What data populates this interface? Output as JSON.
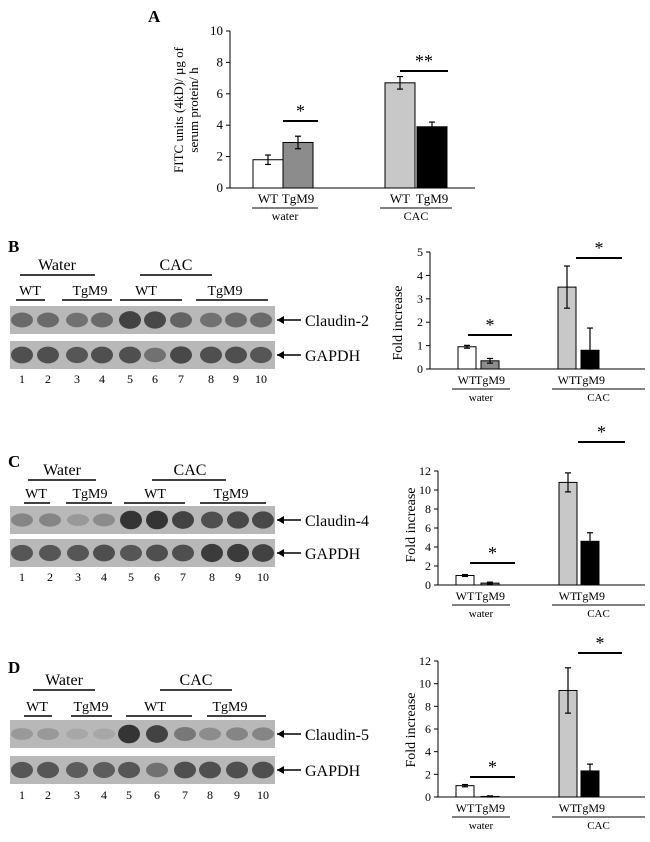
{
  "panel_a": {
    "letter": "A",
    "ylabel_line1": "FITC units (4kD)/ µg of",
    "ylabel_line2": "serum protein/ h",
    "yticks": [
      "0",
      "2",
      "4",
      "6",
      "8",
      "10"
    ],
    "ylim": [
      0,
      10
    ],
    "bars": [
      {
        "label": "WT",
        "value": 1.8,
        "err": 0.3,
        "color": "#ffffff"
      },
      {
        "label": "TgM9",
        "value": 2.9,
        "err": 0.4,
        "color": "#8c8c8c"
      },
      {
        "label": "WT",
        "value": 6.7,
        "err": 0.4,
        "color": "#c8c8c8"
      },
      {
        "label": "TgM9",
        "value": 3.9,
        "err": 0.3,
        "color": "#000000"
      }
    ],
    "groups": [
      "water",
      "CAC"
    ],
    "sig_water": "*",
    "sig_cac": "**"
  },
  "panel_b": {
    "letter": "B",
    "blot_groups": [
      "Water",
      "CAC"
    ],
    "blot_subgroups": [
      "WT",
      "TgM9",
      "WT",
      "TgM9"
    ],
    "lanes": [
      "1",
      "2",
      "3",
      "4",
      "5",
      "6",
      "7",
      "8",
      "9",
      "10"
    ],
    "band_top": "Claudin-2",
    "band_bottom": "GAPDH",
    "ylabel": "Fold increase",
    "yticks": [
      "0",
      "1",
      "2",
      "3",
      "4",
      "5"
    ],
    "ylim": [
      0,
      5
    ],
    "bars": [
      {
        "label": "WT",
        "value": 0.95,
        "err": 0.06,
        "color": "#ffffff"
      },
      {
        "label": "TgM9",
        "value": 0.35,
        "err": 0.1,
        "color": "#8c8c8c"
      },
      {
        "label": "WT",
        "value": 3.5,
        "err": 0.9,
        "color": "#c8c8c8"
      },
      {
        "label": "TgM9",
        "value": 0.8,
        "err": 0.95,
        "color": "#000000"
      }
    ],
    "groups": [
      "water",
      "CAC"
    ],
    "sig_water": "*",
    "sig_cac": "*"
  },
  "panel_c": {
    "letter": "C",
    "blot_groups": [
      "Water",
      "CAC"
    ],
    "blot_subgroups": [
      "WT",
      "TgM9",
      "WT",
      "TgM9"
    ],
    "lanes": [
      "1",
      "2",
      "3",
      "4",
      "5",
      "6",
      "7",
      "8",
      "9",
      "10"
    ],
    "band_top": "Claudin-4",
    "band_bottom": "GAPDH",
    "ylabel": "Fold increase",
    "yticks": [
      "0",
      "2",
      "4",
      "6",
      "8",
      "10",
      "12"
    ],
    "ylim": [
      0,
      12
    ],
    "bars": [
      {
        "label": "WT",
        "value": 1.0,
        "err": 0.1,
        "color": "#ffffff"
      },
      {
        "label": "TgM9",
        "value": 0.2,
        "err": 0.1,
        "color": "#8c8c8c"
      },
      {
        "label": "WT",
        "value": 10.8,
        "err": 1.0,
        "color": "#c8c8c8"
      },
      {
        "label": "TgM9",
        "value": 4.6,
        "err": 0.9,
        "color": "#000000"
      }
    ],
    "groups": [
      "water",
      "CAC"
    ],
    "sig_water": "*",
    "sig_cac": "*"
  },
  "panel_d": {
    "letter": "D",
    "blot_groups": [
      "Water",
      "CAC"
    ],
    "blot_subgroups": [
      "WT",
      "TgM9",
      "WT",
      "TgM9"
    ],
    "lanes": [
      "1",
      "2",
      "3",
      "4",
      "5",
      "6",
      "7",
      "8",
      "9",
      "10"
    ],
    "band_top": "Claudin-5",
    "band_bottom": "GAPDH",
    "ylabel": "Fold increase",
    "yticks": [
      "0",
      "2",
      "4",
      "6",
      "8",
      "10",
      "12"
    ],
    "ylim": [
      0,
      12
    ],
    "bars": [
      {
        "label": "WT",
        "value": 1.0,
        "err": 0.1,
        "color": "#ffffff"
      },
      {
        "label": "TgM9",
        "value": 0.05,
        "err": 0.05,
        "color": "#8c8c8c"
      },
      {
        "label": "WT",
        "value": 9.4,
        "err": 2.0,
        "color": "#c8c8c8"
      },
      {
        "label": "TgM9",
        "value": 2.3,
        "err": 0.6,
        "color": "#000000"
      }
    ],
    "groups": [
      "water",
      "CAC"
    ],
    "sig_water": "*",
    "sig_cac": "*"
  },
  "blot_intensity": {
    "claudin2": [
      0.55,
      0.55,
      0.5,
      0.55,
      0.85,
      0.8,
      0.6,
      0.5,
      0.55,
      0.55
    ],
    "gapdh_b": [
      0.75,
      0.75,
      0.7,
      0.75,
      0.75,
      0.5,
      0.8,
      0.75,
      0.75,
      0.7
    ],
    "claudin4": [
      0.35,
      0.35,
      0.2,
      0.3,
      0.95,
      0.95,
      0.85,
      0.75,
      0.8,
      0.8
    ],
    "gapdh_c": [
      0.7,
      0.7,
      0.7,
      0.75,
      0.7,
      0.75,
      0.75,
      0.9,
      0.9,
      0.85
    ],
    "claudin5": [
      0.2,
      0.2,
      0.1,
      0.1,
      0.95,
      0.85,
      0.45,
      0.3,
      0.35,
      0.35
    ],
    "gapdh_d": [
      0.7,
      0.7,
      0.65,
      0.65,
      0.7,
      0.5,
      0.75,
      0.75,
      0.75,
      0.75
    ]
  }
}
